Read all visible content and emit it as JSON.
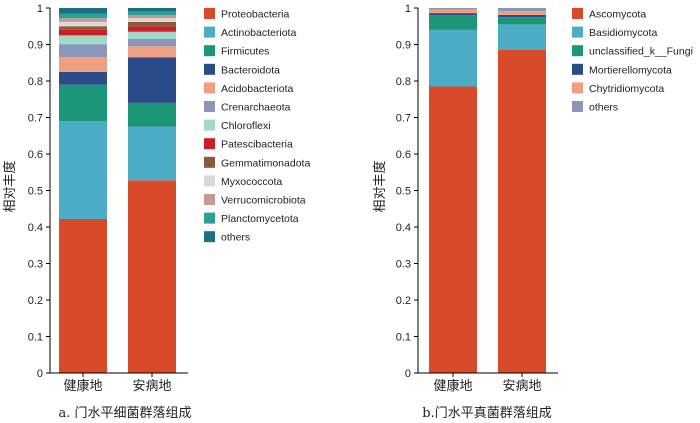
{
  "chart_data": [
    {
      "type": "bar",
      "stacked": true,
      "ylabel": "相对丰度",
      "ylim": [
        0,
        1
      ],
      "yticks": [
        0,
        0.1,
        0.2,
        0.3,
        0.4,
        0.5,
        0.6,
        0.7,
        0.8,
        0.9,
        1
      ],
      "categories": [
        "健康地",
        "安病地"
      ],
      "caption": "a. 门水平细菌群落组成",
      "legend_position": "right",
      "series": [
        {
          "name": "Proteobacteria",
          "color": "#d94a2b",
          "values": [
            0.422,
            0.528
          ]
        },
        {
          "name": "Actinobacteriota",
          "color": "#4bacc6",
          "values": [
            0.268,
            0.147
          ]
        },
        {
          "name": "Firmicutes",
          "color": "#1b9678",
          "values": [
            0.1,
            0.065
          ]
        },
        {
          "name": "Bacteroidota",
          "color": "#2b4b8a",
          "values": [
            0.035,
            0.125
          ]
        },
        {
          "name": "Acidobacteriota",
          "color": "#f0a080",
          "values": [
            0.04,
            0.03
          ]
        },
        {
          "name": "Crenarchaeota",
          "color": "#8b96b8",
          "values": [
            0.035,
            0.02
          ]
        },
        {
          "name": "Chloroflexi",
          "color": "#a2d9c9",
          "values": [
            0.025,
            0.02
          ]
        },
        {
          "name": "Patescibacteria",
          "color": "#cc1f25",
          "values": [
            0.015,
            0.015
          ]
        },
        {
          "name": "Gemmatimonadota",
          "color": "#8b5a3c",
          "values": [
            0.01,
            0.012
          ]
        },
        {
          "name": "Myxococcota",
          "color": "#d9d9d9",
          "values": [
            0.012,
            0.01
          ]
        },
        {
          "name": "Verrucomicrobiota",
          "color": "#c49a92",
          "values": [
            0.01,
            0.008
          ]
        },
        {
          "name": "Planctomycetota",
          "color": "#2aa198",
          "values": [
            0.012,
            0.01
          ]
        },
        {
          "name": "others",
          "color": "#1f6e82",
          "values": [
            0.016,
            0.01
          ]
        }
      ]
    },
    {
      "type": "bar",
      "stacked": true,
      "ylabel": "相对丰度",
      "ylim": [
        0,
        1
      ],
      "yticks": [
        0,
        0.1,
        0.2,
        0.3,
        0.4,
        0.5,
        0.6,
        0.7,
        0.8,
        0.9,
        1
      ],
      "categories": [
        "健康地",
        "安病地"
      ],
      "caption": "b.门水平真菌群落组成",
      "legend_position": "right",
      "series": [
        {
          "name": "Ascomycota",
          "color": "#d94a2b",
          "values": [
            0.785,
            0.885
          ]
        },
        {
          "name": "Basidiomycota",
          "color": "#4bacc6",
          "values": [
            0.155,
            0.07
          ]
        },
        {
          "name": "unclassified_k__Fungi",
          "color": "#1b9678",
          "values": [
            0.04,
            0.02
          ]
        },
        {
          "name": "Mortierellomycota",
          "color": "#2b4b8a",
          "values": [
            0.006,
            0.006
          ]
        },
        {
          "name": "Chytridiomycota",
          "color": "#f0a080",
          "values": [
            0.01,
            0.01
          ]
        },
        {
          "name": "others",
          "color": "#8b96b8",
          "values": [
            0.004,
            0.009
          ]
        }
      ]
    }
  ]
}
